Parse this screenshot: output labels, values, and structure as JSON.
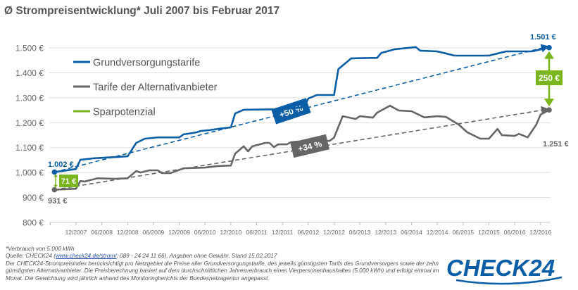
{
  "title": "Ø Strompreisentwicklung* Juli 2007 bis Februar 2017",
  "colors": {
    "blue": "#0a5ea8",
    "gray": "#666666",
    "green": "#7ab51d",
    "grid": "#dddddd",
    "axis_text": "#666666"
  },
  "chart_data": {
    "type": "line",
    "title": "Ø Strompreisentwicklung* Juli 2007 bis Februar 2017",
    "x_unit": "months since 07/2007",
    "xlim": [
      0,
      115
    ],
    "ylim": [
      800,
      1500
    ],
    "y_ticks": [
      800,
      900,
      1000,
      1100,
      1200,
      1300,
      1400,
      1500
    ],
    "y_tick_labels": [
      "800 €",
      "900 €",
      "1.000 €",
      "1.100 €",
      "1.200 €",
      "1.300 €",
      "1.400 €",
      "1.500 €"
    ],
    "x_ticks": [
      5,
      11,
      17,
      23,
      29,
      35,
      41,
      47,
      53,
      59,
      65,
      71,
      77,
      83,
      89,
      95,
      101,
      107,
      113
    ],
    "x_tick_labels": [
      "12/2007",
      "06/2008",
      "12/2008",
      "06/2009",
      "12/2009",
      "06/2010",
      "12/2010",
      "06/2011",
      "12/2011",
      "06/2012",
      "12/2012",
      "06/2013",
      "12/2013",
      "06/2014",
      "12/2014",
      "06/2015",
      "12/2015",
      "06/2016",
      "12/2016"
    ],
    "grid": true,
    "legend_position": "top-left",
    "series": [
      {
        "name": "Grundversorgungstarife",
        "color": "#0a5ea8",
        "points": [
          [
            0,
            1002
          ],
          [
            5,
            1014
          ],
          [
            6,
            1051
          ],
          [
            9,
            1057
          ],
          [
            14,
            1062
          ],
          [
            17,
            1065
          ],
          [
            19,
            1119
          ],
          [
            21,
            1136
          ],
          [
            24,
            1141
          ],
          [
            29,
            1141
          ],
          [
            30,
            1153
          ],
          [
            33,
            1161
          ],
          [
            34,
            1167
          ],
          [
            36,
            1170
          ],
          [
            38,
            1175
          ],
          [
            41,
            1181
          ],
          [
            42,
            1237
          ],
          [
            44,
            1252
          ],
          [
            53,
            1254
          ],
          [
            58,
            1262
          ],
          [
            59,
            1297
          ],
          [
            61,
            1311
          ],
          [
            65,
            1311
          ],
          [
            66,
            1415
          ],
          [
            69,
            1458
          ],
          [
            75,
            1460
          ],
          [
            76,
            1480
          ],
          [
            79,
            1494
          ],
          [
            84,
            1503
          ],
          [
            85,
            1489
          ],
          [
            89,
            1486
          ],
          [
            93,
            1469
          ],
          [
            101,
            1469
          ],
          [
            105,
            1486
          ],
          [
            111,
            1486
          ],
          [
            115,
            1501
          ]
        ]
      },
      {
        "name": "Tarife der Alternativanbieter",
        "color": "#666666",
        "points": [
          [
            0,
            931
          ],
          [
            5,
            935
          ],
          [
            6,
            966
          ],
          [
            7,
            964
          ],
          [
            10,
            977
          ],
          [
            14,
            975
          ],
          [
            17,
            977
          ],
          [
            19,
            1006
          ],
          [
            20,
            1000
          ],
          [
            22,
            1009
          ],
          [
            24,
            1009
          ],
          [
            25,
            998
          ],
          [
            27,
            998
          ],
          [
            30,
            1017
          ],
          [
            35,
            1020
          ],
          [
            38,
            1026
          ],
          [
            41,
            1028
          ],
          [
            42,
            1076
          ],
          [
            44,
            1105
          ],
          [
            45,
            1085
          ],
          [
            46,
            1105
          ],
          [
            49,
            1119
          ],
          [
            50,
            1119
          ],
          [
            51,
            1102
          ],
          [
            52,
            1113
          ],
          [
            54,
            1113
          ],
          [
            55,
            1122
          ],
          [
            57,
            1125
          ],
          [
            64,
            1127
          ],
          [
            65,
            1140
          ],
          [
            67,
            1226
          ],
          [
            70,
            1215
          ],
          [
            71,
            1226
          ],
          [
            74,
            1220
          ],
          [
            75,
            1240
          ],
          [
            78,
            1268
          ],
          [
            80,
            1249
          ],
          [
            83,
            1246
          ],
          [
            86,
            1221
          ],
          [
            89,
            1226
          ],
          [
            91,
            1223
          ],
          [
            94,
            1192
          ],
          [
            96,
            1161
          ],
          [
            99,
            1136
          ],
          [
            101,
            1136
          ],
          [
            103,
            1175
          ],
          [
            104,
            1150
          ],
          [
            107,
            1147
          ],
          [
            108,
            1155
          ],
          [
            110,
            1141
          ],
          [
            112,
            1192
          ],
          [
            113,
            1232
          ],
          [
            115,
            1251
          ]
        ]
      },
      {
        "name": "Sparpotenzial",
        "color": "#7ab51d",
        "points": []
      }
    ],
    "trends": [
      {
        "series": "Grundversorgungstarife",
        "from": [
          0,
          1002
        ],
        "to": [
          115,
          1501
        ],
        "label": "+50 %"
      },
      {
        "series": "Tarife der Alternativanbieter",
        "from": [
          0,
          931
        ],
        "to": [
          115,
          1251
        ],
        "label": "+34 %"
      }
    ],
    "annotations": {
      "blue_start": "1.002 €",
      "gray_start": "931 €",
      "start_gap": "71 €",
      "blue_end": "1.501 €",
      "gray_end": "1.251 €",
      "end_gap": "250 €"
    }
  },
  "footer": {
    "line1": "*Verbrauch von 5.000 kWh",
    "source_prefix": "Quelle: CHECK24 (",
    "source_link": "www.check24.de/strom/",
    "source_suffix": "; 089 - 24 24 11 66), Angaben ohne Gewähr, Stand 15.02.2017",
    "line3": "Der CHECK24-Strompreisindex berücksichtigt pro Netzgebiet die Preise aller Grundversorgungstarife, des jeweils günstigsten Tarifs des Grundversorgers sowie der zehn günstigsten Alternativanbieter. Die Preisberechnung basiert auf dem durchschnittlichen Jahresverbrauch eines Vierpersonenhaushaltes (5.000 kWh) und erfolgt einmal im Monat. Die Gewichtung wird jährlich anhand des Monitoringberichts der Bundesnetzagentur angepasst."
  },
  "logo": {
    "text": "CHECK24"
  }
}
